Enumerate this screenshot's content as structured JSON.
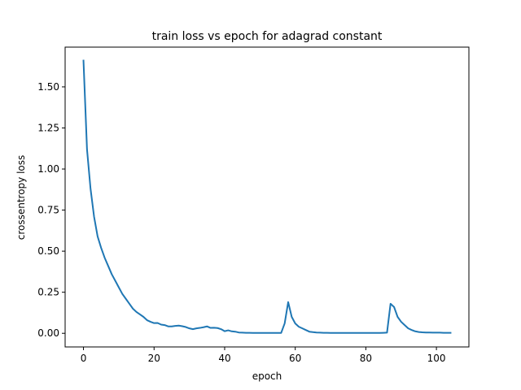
{
  "chart_data": {
    "type": "line",
    "title": "train loss vs epoch for adagrad constant",
    "xlabel": "epoch",
    "ylabel": "crossentropy loss",
    "xlim": [
      -5.2,
      109.2
    ],
    "ylim": [
      -0.083,
      1.742
    ],
    "grid": false,
    "x_ticks": [
      0,
      20,
      40,
      60,
      80,
      100
    ],
    "x_tick_labels": [
      "0",
      "20",
      "40",
      "60",
      "80",
      "100"
    ],
    "y_ticks": [
      0.0,
      0.25,
      0.5,
      0.75,
      1.0,
      1.25,
      1.5
    ],
    "y_tick_labels": [
      "0.00",
      "0.25",
      "0.50",
      "0.75",
      "1.00",
      "1.25",
      "1.50"
    ],
    "series": [
      {
        "color": "#1f77b4",
        "x": [
          0,
          1,
          2,
          3,
          4,
          5,
          6,
          7,
          8,
          9,
          10,
          11,
          12,
          13,
          14,
          15,
          16,
          17,
          18,
          19,
          20,
          21,
          22,
          23,
          24,
          25,
          26,
          27,
          28,
          29,
          30,
          31,
          32,
          33,
          34,
          35,
          36,
          37,
          38,
          39,
          40,
          41,
          42,
          43,
          44,
          45,
          46,
          47,
          48,
          49,
          50,
          51,
          52,
          53,
          54,
          55,
          56,
          57,
          58,
          59,
          60,
          61,
          62,
          63,
          64,
          65,
          66,
          67,
          68,
          69,
          70,
          71,
          72,
          73,
          74,
          75,
          76,
          77,
          78,
          79,
          80,
          81,
          82,
          83,
          84,
          85,
          86,
          87,
          88,
          89,
          90,
          91,
          92,
          93,
          94,
          95,
          96,
          97,
          98,
          99,
          100,
          101,
          102,
          103,
          104
        ],
        "values": [
          1.66,
          1.12,
          0.88,
          0.71,
          0.59,
          0.52,
          0.46,
          0.41,
          0.36,
          0.32,
          0.28,
          0.24,
          0.21,
          0.18,
          0.15,
          0.13,
          0.115,
          0.1,
          0.08,
          0.07,
          0.062,
          0.063,
          0.053,
          0.05,
          0.042,
          0.042,
          0.045,
          0.047,
          0.043,
          0.038,
          0.03,
          0.025,
          0.03,
          0.033,
          0.037,
          0.042,
          0.033,
          0.034,
          0.032,
          0.025,
          0.013,
          0.018,
          0.012,
          0.01,
          0.005,
          0.004,
          0.003,
          0.003,
          0.002,
          0.002,
          0.002,
          0.002,
          0.002,
          0.002,
          0.002,
          0.002,
          0.002,
          0.06,
          0.19,
          0.1,
          0.06,
          0.04,
          0.03,
          0.02,
          0.01,
          0.007,
          0.005,
          0.004,
          0.003,
          0.003,
          0.002,
          0.002,
          0.002,
          0.002,
          0.002,
          0.002,
          0.002,
          0.002,
          0.002,
          0.002,
          0.002,
          0.002,
          0.002,
          0.002,
          0.002,
          0.003,
          0.004,
          0.18,
          0.16,
          0.1,
          0.07,
          0.05,
          0.03,
          0.02,
          0.012,
          0.008,
          0.006,
          0.005,
          0.005,
          0.004,
          0.004,
          0.004,
          0.003,
          0.003,
          0.003
        ]
      }
    ]
  }
}
